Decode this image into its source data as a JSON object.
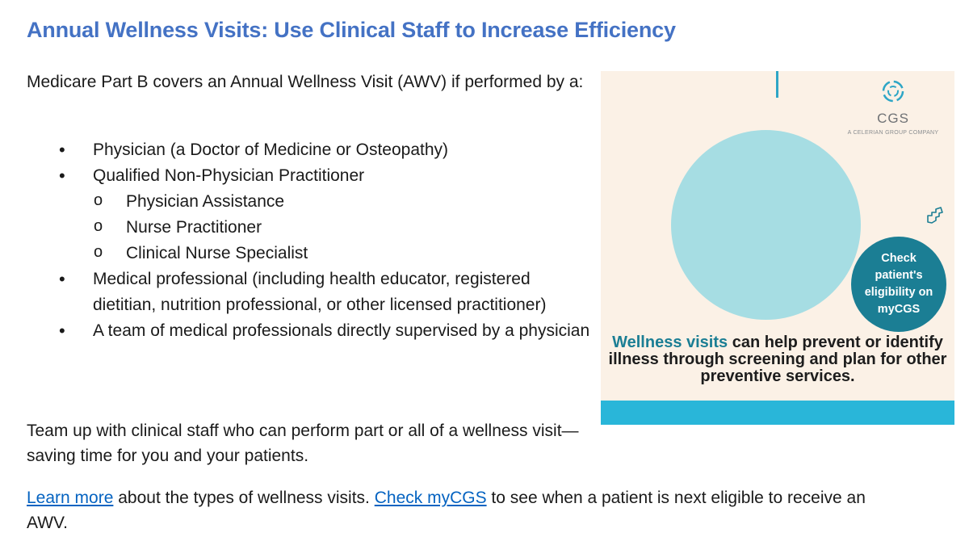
{
  "title": "Annual Wellness Visits: Use Clinical Staff to Increase Efficiency",
  "intro": "Medicare Part B covers an Annual Wellness Visit (AWV) if performed by a:",
  "items": [
    "Physician (a Doctor of Medicine or Osteopathy)",
    "Qualified Non-Physician Practitioner",
    "Medical professional (including health educator, registered dietitian, nutrition professional, or other licensed practitioner)",
    "A team of medical professionals directly supervised by a physician"
  ],
  "subitems": [
    "Physician Assistance",
    "Nurse Practitioner",
    "Clinical Nurse Specialist"
  ],
  "team_text": "Team up with clinical staff who can perform part or all of a wellness visit—saving time for you and your patients.",
  "closing": {
    "link1": "Learn more",
    "text1": " about the types of wellness visits. ",
    "link2": "Check myCGS",
    "text2": " to see when a patient is next eligible to receive an AWV."
  },
  "graphic": {
    "logo_name": "CGS",
    "logo_tagline": "A CELERIAN GROUP COMPANY",
    "logo_icon": "cgs-logo-mark",
    "pointer_icon": "pointer-hand-icon",
    "badge_text": "Check patient's eligibility on myCGS",
    "message_highlight": "Wellness visits",
    "message_rest": " can help prevent or identify illness through screening and plan for other preventive services.",
    "colors": {
      "background": "#fbf1e6",
      "circle": "#a6dde3",
      "badge": "#1b7e94",
      "stripe": "#29b6d9",
      "highlight": "#1b7e94"
    }
  },
  "colors": {
    "title": "#4472c4",
    "link": "#0563c1"
  }
}
